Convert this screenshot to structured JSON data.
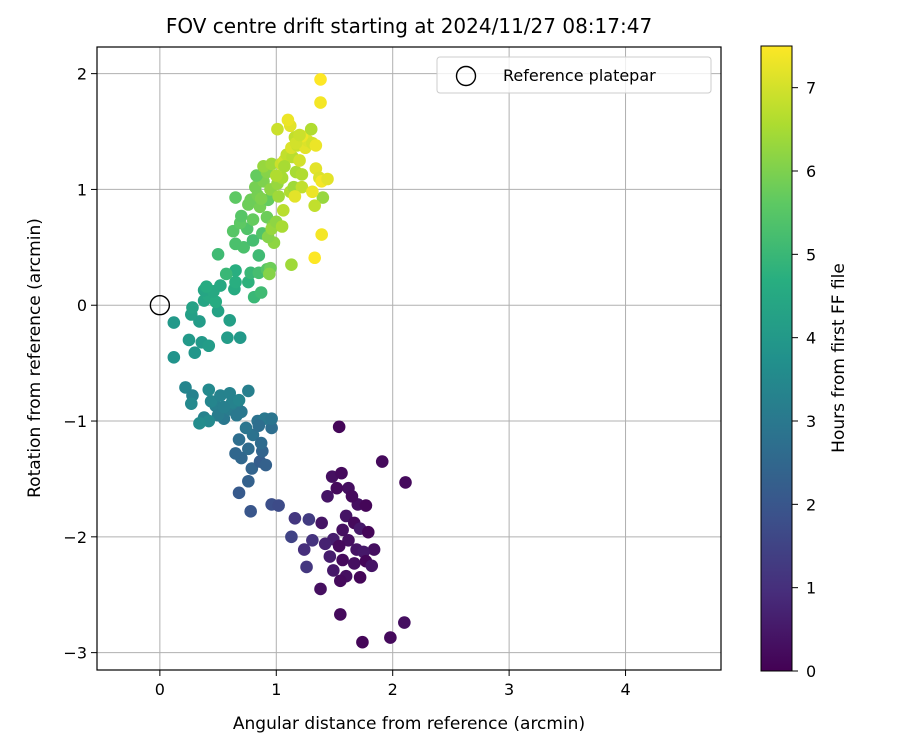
{
  "chart_data": {
    "type": "scatter",
    "title": "FOV centre drift starting at 2024/11/27 08:17:47",
    "xlabel": "Angular distance from reference (arcmin)",
    "ylabel": "Rotation from reference (arcmin)",
    "xlim": [
      -0.54,
      4.82
    ],
    "ylim": [
      -3.15,
      2.23
    ],
    "xticks": [
      0,
      1,
      2,
      3,
      4
    ],
    "xtick_labels": [
      "0",
      "1",
      "2",
      "3",
      "4"
    ],
    "yticks": [
      -3,
      -2,
      -1,
      0,
      1,
      2
    ],
    "ytick_labels": [
      "−3",
      "−2",
      "−1",
      "0",
      "1",
      "2"
    ],
    "grid": true,
    "legend": {
      "position": "top-right",
      "entries": [
        "Reference platepar"
      ]
    },
    "reference_point": {
      "label": "Reference platepar",
      "x": 0,
      "y": 0
    },
    "colorbar": {
      "label": "Hours from first FF file",
      "min": 0,
      "max": 7.5,
      "ticks": [
        0,
        1,
        2,
        3,
        4,
        5,
        6,
        7
      ],
      "colormap": "viridis"
    },
    "points": [
      {
        "x": 1.54,
        "y": -1.05,
        "t": 0.1
      },
      {
        "x": 1.91,
        "y": -1.35,
        "t": 0.2
      },
      {
        "x": 2.11,
        "y": -1.53,
        "t": 0.2
      },
      {
        "x": 1.48,
        "y": -1.48,
        "t": 0.3
      },
      {
        "x": 1.56,
        "y": -1.45,
        "t": 0.2
      },
      {
        "x": 1.62,
        "y": -1.58,
        "t": 0.3
      },
      {
        "x": 1.44,
        "y": -1.65,
        "t": 0.4
      },
      {
        "x": 1.52,
        "y": -1.58,
        "t": 0.2
      },
      {
        "x": 1.7,
        "y": -1.72,
        "t": 0.3
      },
      {
        "x": 1.77,
        "y": -1.73,
        "t": 0.1
      },
      {
        "x": 1.6,
        "y": -1.82,
        "t": 0.4
      },
      {
        "x": 1.67,
        "y": -1.88,
        "t": 0.2
      },
      {
        "x": 1.57,
        "y": -1.94,
        "t": 0.3
      },
      {
        "x": 1.72,
        "y": -1.93,
        "t": 0.5
      },
      {
        "x": 1.79,
        "y": -1.96,
        "t": 0.1
      },
      {
        "x": 1.49,
        "y": -2.02,
        "t": 0.6
      },
      {
        "x": 1.62,
        "y": -2.03,
        "t": 0.3
      },
      {
        "x": 1.42,
        "y": -2.06,
        "t": 0.7
      },
      {
        "x": 1.54,
        "y": -2.08,
        "t": 0.2
      },
      {
        "x": 1.69,
        "y": -2.11,
        "t": 0.4
      },
      {
        "x": 1.84,
        "y": -2.11,
        "t": 0.3
      },
      {
        "x": 1.75,
        "y": -2.13,
        "t": 0.5
      },
      {
        "x": 1.46,
        "y": -2.17,
        "t": 0.6
      },
      {
        "x": 1.57,
        "y": -2.2,
        "t": 0.2
      },
      {
        "x": 1.67,
        "y": -2.23,
        "t": 0.3
      },
      {
        "x": 1.77,
        "y": -2.21,
        "t": 0.1
      },
      {
        "x": 1.82,
        "y": -2.25,
        "t": 0.4
      },
      {
        "x": 1.49,
        "y": -2.29,
        "t": 0.5
      },
      {
        "x": 1.6,
        "y": -2.34,
        "t": 0.3
      },
      {
        "x": 1.55,
        "y": -2.38,
        "t": 0.2
      },
      {
        "x": 1.72,
        "y": -2.35,
        "t": 0.1
      },
      {
        "x": 1.38,
        "y": -2.45,
        "t": 0.3
      },
      {
        "x": 1.55,
        "y": -2.67,
        "t": 0.2
      },
      {
        "x": 1.74,
        "y": -2.91,
        "t": 0.1
      },
      {
        "x": 1.98,
        "y": -2.87,
        "t": 0.2
      },
      {
        "x": 2.1,
        "y": -2.74,
        "t": 0.3
      },
      {
        "x": 1.39,
        "y": -1.88,
        "t": 0.4
      },
      {
        "x": 1.65,
        "y": -1.65,
        "t": 0.2
      },
      {
        "x": 1.16,
        "y": -1.84,
        "t": 1.2
      },
      {
        "x": 1.31,
        "y": -2.03,
        "t": 1.1
      },
      {
        "x": 1.28,
        "y": -1.85,
        "t": 1.3
      },
      {
        "x": 1.13,
        "y": -2.0,
        "t": 1.5
      },
      {
        "x": 1.24,
        "y": -2.11,
        "t": 1.0
      },
      {
        "x": 1.26,
        "y": -2.26,
        "t": 1.2
      },
      {
        "x": 0.78,
        "y": -1.78,
        "t": 2.0
      },
      {
        "x": 0.96,
        "y": -1.72,
        "t": 1.8
      },
      {
        "x": 1.02,
        "y": -1.73,
        "t": 1.7
      },
      {
        "x": 0.68,
        "y": -1.62,
        "t": 2.1
      },
      {
        "x": 0.76,
        "y": -1.52,
        "t": 2.3
      },
      {
        "x": 0.79,
        "y": -1.41,
        "t": 2.4
      },
      {
        "x": 0.86,
        "y": -1.35,
        "t": 2.2
      },
      {
        "x": 0.7,
        "y": -1.32,
        "t": 2.5
      },
      {
        "x": 0.76,
        "y": -1.24,
        "t": 2.6
      },
      {
        "x": 0.65,
        "y": -1.28,
        "t": 2.5
      },
      {
        "x": 0.88,
        "y": -1.26,
        "t": 2.4
      },
      {
        "x": 0.91,
        "y": -1.38,
        "t": 2.3
      },
      {
        "x": 0.68,
        "y": -1.16,
        "t": 2.7
      },
      {
        "x": 0.8,
        "y": -1.12,
        "t": 2.8
      },
      {
        "x": 0.87,
        "y": -1.19,
        "t": 2.6
      },
      {
        "x": 0.74,
        "y": -1.06,
        "t": 2.9
      },
      {
        "x": 0.96,
        "y": -1.06,
        "t": 2.7
      },
      {
        "x": 0.84,
        "y": -1.0,
        "t": 2.8
      },
      {
        "x": 0.9,
        "y": -0.98,
        "t": 3.0
      },
      {
        "x": 0.96,
        "y": -0.98,
        "t": 2.9
      },
      {
        "x": 0.85,
        "y": -1.04,
        "t": 2.7
      },
      {
        "x": 0.55,
        "y": -0.98,
        "t": 3.0
      },
      {
        "x": 0.6,
        "y": -0.9,
        "t": 3.1
      },
      {
        "x": 0.66,
        "y": -0.86,
        "t": 3.2
      },
      {
        "x": 0.7,
        "y": -0.92,
        "t": 3.0
      },
      {
        "x": 0.62,
        "y": -0.84,
        "t": 3.3
      },
      {
        "x": 0.48,
        "y": -0.87,
        "t": 3.2
      },
      {
        "x": 0.44,
        "y": -0.83,
        "t": 3.4
      },
      {
        "x": 0.52,
        "y": -0.78,
        "t": 3.3
      },
      {
        "x": 0.42,
        "y": -0.73,
        "t": 3.5
      },
      {
        "x": 0.6,
        "y": -0.76,
        "t": 3.3
      },
      {
        "x": 0.68,
        "y": -0.82,
        "t": 3.4
      },
      {
        "x": 0.76,
        "y": -0.74,
        "t": 3.2
      },
      {
        "x": 0.5,
        "y": -0.95,
        "t": 3.1
      },
      {
        "x": 0.38,
        "y": -0.97,
        "t": 3.3
      },
      {
        "x": 0.42,
        "y": -1.0,
        "t": 3.5
      },
      {
        "x": 0.34,
        "y": -1.02,
        "t": 3.6
      },
      {
        "x": 0.22,
        "y": -0.71,
        "t": 3.4
      },
      {
        "x": 0.28,
        "y": -0.78,
        "t": 3.3
      },
      {
        "x": 0.27,
        "y": -0.85,
        "t": 3.5
      },
      {
        "x": 0.66,
        "y": -0.95,
        "t": 3.0
      },
      {
        "x": 0.55,
        "y": -0.88,
        "t": 3.2
      },
      {
        "x": 0.12,
        "y": -0.45,
        "t": 3.8
      },
      {
        "x": 0.25,
        "y": -0.3,
        "t": 4.0
      },
      {
        "x": 0.3,
        "y": -0.41,
        "t": 3.9
      },
      {
        "x": 0.36,
        "y": -0.32,
        "t": 4.0
      },
      {
        "x": 0.42,
        "y": -0.35,
        "t": 4.1
      },
      {
        "x": 0.12,
        "y": -0.15,
        "t": 4.0
      },
      {
        "x": 0.34,
        "y": -0.14,
        "t": 4.1
      },
      {
        "x": 0.27,
        "y": -0.08,
        "t": 4.2
      },
      {
        "x": 0.5,
        "y": -0.05,
        "t": 4.3
      },
      {
        "x": 0.58,
        "y": -0.28,
        "t": 4.1
      },
      {
        "x": 0.69,
        "y": -0.28,
        "t": 4.0
      },
      {
        "x": 0.6,
        "y": -0.13,
        "t": 4.2
      },
      {
        "x": 0.28,
        "y": -0.02,
        "t": 4.3
      },
      {
        "x": 0.38,
        "y": 0.04,
        "t": 4.4
      },
      {
        "x": 0.42,
        "y": 0.08,
        "t": 4.5
      },
      {
        "x": 0.38,
        "y": 0.13,
        "t": 4.4
      },
      {
        "x": 0.48,
        "y": 0.03,
        "t": 4.6
      },
      {
        "x": 0.46,
        "y": 0.12,
        "t": 4.5
      },
      {
        "x": 0.64,
        "y": 0.14,
        "t": 4.6
      },
      {
        "x": 0.65,
        "y": 0.2,
        "t": 4.7
      },
      {
        "x": 0.76,
        "y": 0.2,
        "t": 4.8
      },
      {
        "x": 0.65,
        "y": 0.3,
        "t": 4.7
      },
      {
        "x": 0.52,
        "y": 0.17,
        "t": 4.5
      },
      {
        "x": 0.4,
        "y": 0.16,
        "t": 4.6
      },
      {
        "x": 0.81,
        "y": 0.07,
        "t": 5.0
      },
      {
        "x": 0.87,
        "y": 0.11,
        "t": 5.1
      },
      {
        "x": 0.78,
        "y": 0.28,
        "t": 5.0
      },
      {
        "x": 0.85,
        "y": 0.28,
        "t": 5.2
      },
      {
        "x": 0.92,
        "y": 0.31,
        "t": 5.5
      },
      {
        "x": 0.95,
        "y": 0.32,
        "t": 5.8
      },
      {
        "x": 0.94,
        "y": 0.27,
        "t": 6.1
      },
      {
        "x": 0.57,
        "y": 0.27,
        "t": 5.0
      },
      {
        "x": 0.5,
        "y": 0.44,
        "t": 5.1
      },
      {
        "x": 0.65,
        "y": 0.53,
        "t": 5.3
      },
      {
        "x": 0.72,
        "y": 0.5,
        "t": 5.3
      },
      {
        "x": 0.75,
        "y": 0.66,
        "t": 5.4
      },
      {
        "x": 0.8,
        "y": 0.56,
        "t": 5.2
      },
      {
        "x": 0.85,
        "y": 0.43,
        "t": 5.1
      },
      {
        "x": 0.88,
        "y": 0.62,
        "t": 5.4
      },
      {
        "x": 0.63,
        "y": 0.64,
        "t": 5.5
      },
      {
        "x": 0.69,
        "y": 0.71,
        "t": 5.6
      },
      {
        "x": 0.7,
        "y": 0.77,
        "t": 5.5
      },
      {
        "x": 0.8,
        "y": 0.74,
        "t": 5.7
      },
      {
        "x": 0.76,
        "y": 0.87,
        "t": 5.8
      },
      {
        "x": 0.86,
        "y": 0.85,
        "t": 5.9
      },
      {
        "x": 0.93,
        "y": 0.91,
        "t": 5.7
      },
      {
        "x": 0.92,
        "y": 0.76,
        "t": 5.8
      },
      {
        "x": 0.97,
        "y": 0.69,
        "t": 6.0
      },
      {
        "x": 0.98,
        "y": 0.54,
        "t": 6.2
      },
      {
        "x": 0.93,
        "y": 0.59,
        "t": 6.1
      },
      {
        "x": 0.96,
        "y": 0.66,
        "t": 6.3
      },
      {
        "x": 1.0,
        "y": 0.72,
        "t": 6.2
      },
      {
        "x": 1.05,
        "y": 0.68,
        "t": 6.5
      },
      {
        "x": 1.13,
        "y": 0.35,
        "t": 6.4
      },
      {
        "x": 0.78,
        "y": 0.91,
        "t": 5.8
      },
      {
        "x": 0.65,
        "y": 0.93,
        "t": 5.6
      },
      {
        "x": 0.84,
        "y": 0.95,
        "t": 5.9
      },
      {
        "x": 0.82,
        "y": 1.02,
        "t": 5.9
      },
      {
        "x": 0.89,
        "y": 1.07,
        "t": 6.0
      },
      {
        "x": 0.83,
        "y": 1.12,
        "t": 5.7
      },
      {
        "x": 0.92,
        "y": 1.15,
        "t": 6.1
      },
      {
        "x": 0.89,
        "y": 1.2,
        "t": 6.3
      },
      {
        "x": 0.96,
        "y": 1.22,
        "t": 6.4
      },
      {
        "x": 0.87,
        "y": 0.92,
        "t": 6.0
      },
      {
        "x": 0.95,
        "y": 1.0,
        "t": 6.2
      },
      {
        "x": 1.02,
        "y": 0.94,
        "t": 6.4
      },
      {
        "x": 1.01,
        "y": 1.05,
        "t": 6.3
      },
      {
        "x": 1.05,
        "y": 1.1,
        "t": 6.5
      },
      {
        "x": 1.0,
        "y": 1.12,
        "t": 6.6
      },
      {
        "x": 1.06,
        "y": 0.82,
        "t": 6.7
      },
      {
        "x": 1.12,
        "y": 0.98,
        "t": 6.6
      },
      {
        "x": 1.15,
        "y": 1.02,
        "t": 6.4
      },
      {
        "x": 1.17,
        "y": 1.15,
        "t": 6.5
      },
      {
        "x": 1.22,
        "y": 1.02,
        "t": 6.8
      },
      {
        "x": 1.22,
        "y": 1.13,
        "t": 6.6
      },
      {
        "x": 1.04,
        "y": 1.22,
        "t": 6.9
      },
      {
        "x": 1.07,
        "y": 1.25,
        "t": 7.0
      },
      {
        "x": 1.09,
        "y": 1.3,
        "t": 6.8
      },
      {
        "x": 1.14,
        "y": 1.28,
        "t": 6.7
      },
      {
        "x": 1.2,
        "y": 1.25,
        "t": 7.0
      },
      {
        "x": 1.13,
        "y": 1.36,
        "t": 7.1
      },
      {
        "x": 1.18,
        "y": 1.38,
        "t": 6.9
      },
      {
        "x": 1.25,
        "y": 1.36,
        "t": 7.2
      },
      {
        "x": 1.27,
        "y": 1.42,
        "t": 7.1
      },
      {
        "x": 1.22,
        "y": 1.46,
        "t": 7.3
      },
      {
        "x": 1.16,
        "y": 1.45,
        "t": 6.8
      },
      {
        "x": 1.12,
        "y": 1.55,
        "t": 7.2
      },
      {
        "x": 1.1,
        "y": 1.6,
        "t": 7.3
      },
      {
        "x": 1.01,
        "y": 1.52,
        "t": 6.9
      },
      {
        "x": 1.16,
        "y": 0.94,
        "t": 7.2
      },
      {
        "x": 1.3,
        "y": 1.52,
        "t": 6.6
      },
      {
        "x": 1.31,
        "y": 1.4,
        "t": 7.0
      },
      {
        "x": 1.34,
        "y": 1.38,
        "t": 7.3
      },
      {
        "x": 1.34,
        "y": 1.18,
        "t": 7.2
      },
      {
        "x": 1.37,
        "y": 1.1,
        "t": 7.1
      },
      {
        "x": 1.39,
        "y": 1.07,
        "t": 7.4
      },
      {
        "x": 1.44,
        "y": 1.09,
        "t": 7.2
      },
      {
        "x": 1.4,
        "y": 0.93,
        "t": 6.3
      },
      {
        "x": 1.33,
        "y": 0.86,
        "t": 6.8
      },
      {
        "x": 1.31,
        "y": 0.98,
        "t": 7.3
      },
      {
        "x": 1.39,
        "y": 0.61,
        "t": 7.4
      },
      {
        "x": 1.33,
        "y": 0.41,
        "t": 7.5
      },
      {
        "x": 1.38,
        "y": 1.75,
        "t": 7.4
      },
      {
        "x": 1.38,
        "y": 1.95,
        "t": 7.5
      },
      {
        "x": 1.07,
        "y": 1.2,
        "t": 6.5
      },
      {
        "x": 1.17,
        "y": 1.4,
        "t": 7.0
      },
      {
        "x": 1.2,
        "y": 1.47,
        "t": 6.9
      }
    ]
  }
}
